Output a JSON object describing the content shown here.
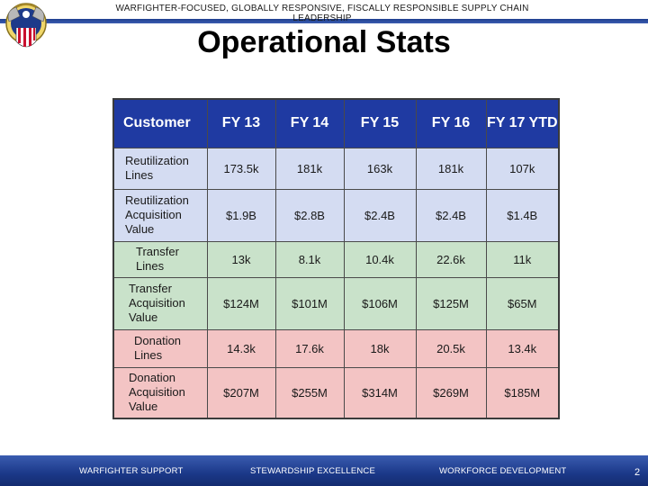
{
  "header": {
    "slogan": "WARFIGHTER-FOCUSED, GLOBALLY RESPONSIVE, FISCALLY RESPONSIBLE SUPPLY CHAIN LEADERSHIP"
  },
  "title": "Operational Stats",
  "table": {
    "headers": [
      "Customer",
      "FY 13",
      "FY 14",
      "FY 15",
      "FY 16",
      "FY 17 YTD"
    ],
    "rows": [
      {
        "label": "Reutilization Lines",
        "values": [
          "173.5k",
          "181k",
          "163k",
          "181k",
          "107k"
        ]
      },
      {
        "label": "Reutilization Acquisition Value",
        "values": [
          "$1.9B",
          "$2.8B",
          "$2.4B",
          "$2.4B",
          "$1.4B"
        ]
      },
      {
        "label": "Transfer Lines",
        "values": [
          "13k",
          "8.1k",
          "10.4k",
          "22.6k",
          "11k"
        ]
      },
      {
        "label": "Transfer Acquisition Value",
        "values": [
          "$124M",
          "$101M",
          "$106M",
          "$125M",
          "$65M"
        ]
      },
      {
        "label": "Donation Lines",
        "values": [
          "14.3k",
          "17.6k",
          "18k",
          "20.5k",
          "13.4k"
        ]
      },
      {
        "label": "Donation Acquisition Value",
        "values": [
          "$207M",
          "$255M",
          "$314M",
          "$269M",
          "$185M"
        ]
      }
    ]
  },
  "footer": {
    "items": [
      "WARFIGHTER SUPPORT",
      "STEWARDSHIP EXCELLENCE",
      "WORKFORCE DEVELOPMENT"
    ],
    "page_number": "2"
  },
  "colors": {
    "header_blue": "#1f3aa2",
    "reutilization_rows": "#d4dcf2",
    "transfer_rows": "#c9e2ca",
    "donation_rows": "#f3c4c4"
  }
}
